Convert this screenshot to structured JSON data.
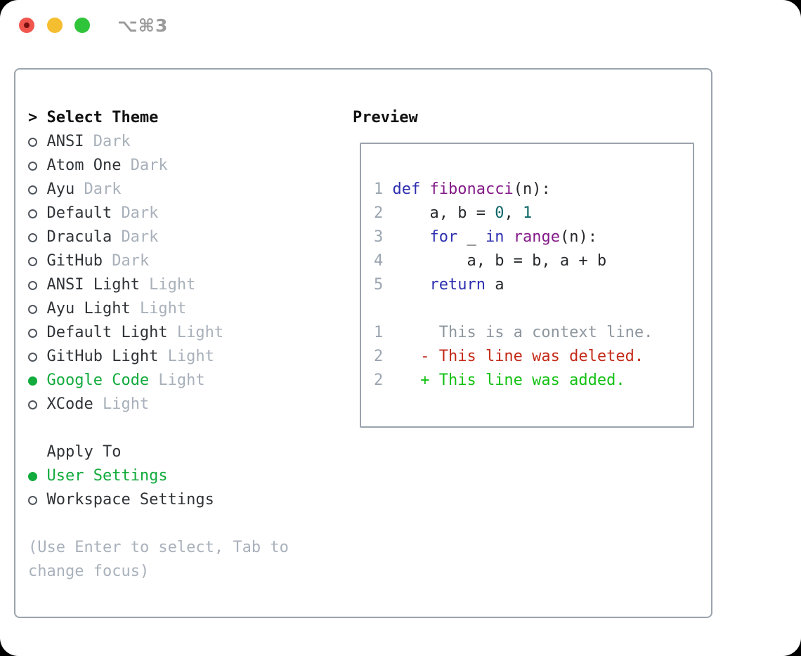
{
  "window": {
    "title": "⌥⌘3",
    "traffic_lights": [
      "close",
      "minimize",
      "zoom"
    ]
  },
  "colors": {
    "accent_green": "#12ab3d",
    "traffic_red": "#f1564e",
    "traffic_red_dot": "#7b1010",
    "traffic_yellow": "#f5bd30",
    "traffic_green": "#30c43a",
    "panel_border": "#9ba3ac",
    "muted_gray": "#a8b0ba",
    "text_dark": "#2f3337",
    "code_keyword": "#2e2fb0",
    "code_function": "#831a88",
    "code_literal": "#0b6568",
    "code_plain": "#26282b",
    "code_linenum": "#9aa5b1",
    "diff_context": "#8d969e",
    "diff_deleted": "#c42a18",
    "diff_added": "#13c113"
  },
  "theme_panel": {
    "header_prefix": ">",
    "header_label": "Select Theme",
    "themes": [
      {
        "name": "ANSI",
        "variant": "Dark",
        "selected": false
      },
      {
        "name": "Atom One",
        "variant": "Dark",
        "selected": false
      },
      {
        "name": "Ayu",
        "variant": "Dark",
        "selected": false
      },
      {
        "name": "Default",
        "variant": "Dark",
        "selected": false
      },
      {
        "name": "Dracula",
        "variant": "Dark",
        "selected": false
      },
      {
        "name": "GitHub",
        "variant": "Dark",
        "selected": false
      },
      {
        "name": "ANSI Light",
        "variant": "Light",
        "selected": false
      },
      {
        "name": "Ayu Light",
        "variant": "Light",
        "selected": false
      },
      {
        "name": "Default Light",
        "variant": "Light",
        "selected": false
      },
      {
        "name": "GitHub Light",
        "variant": "Light",
        "selected": false
      },
      {
        "name": "Google Code",
        "variant": "Light",
        "selected": true
      },
      {
        "name": "XCode",
        "variant": "Light",
        "selected": false
      }
    ],
    "apply_to_label": "Apply To",
    "apply_options": [
      {
        "name": "User Settings",
        "selected": true
      },
      {
        "name": "Workspace Settings",
        "selected": false
      }
    ],
    "hint_lines": [
      "(Use Enter to select, Tab to",
      "change focus)"
    ]
  },
  "preview": {
    "label": "Preview",
    "code_lines": [
      [
        [
          "num",
          "1 "
        ],
        [
          "kw",
          "def"
        ],
        [
          "pl",
          " "
        ],
        [
          "fn",
          "fibonacci"
        ],
        [
          "pl",
          "(n):"
        ]
      ],
      [
        [
          "num",
          "2 "
        ],
        [
          "pl",
          "    a, b = "
        ],
        [
          "lit",
          "0"
        ],
        [
          "pl",
          ", "
        ],
        [
          "lit",
          "1"
        ]
      ],
      [
        [
          "num",
          "3 "
        ],
        [
          "pl",
          "    "
        ],
        [
          "kw",
          "for"
        ],
        [
          "pl",
          " _ "
        ],
        [
          "kw",
          "in"
        ],
        [
          "pl",
          " "
        ],
        [
          "fn",
          "range"
        ],
        [
          "pl",
          "(n):"
        ]
      ],
      [
        [
          "num",
          "4 "
        ],
        [
          "pl",
          "        a, b = b, a + b"
        ]
      ],
      [
        [
          "num",
          "5 "
        ],
        [
          "pl",
          "    "
        ],
        [
          "kw",
          "return"
        ],
        [
          "pl",
          " a"
        ]
      ],
      [],
      [
        [
          "num",
          "1"
        ],
        [
          "ctx",
          "      This is a context line."
        ]
      ],
      [
        [
          "num",
          "2"
        ],
        [
          "del",
          "    - This line was deleted."
        ]
      ],
      [
        [
          "num",
          "2"
        ],
        [
          "add",
          "    + This line was added."
        ]
      ]
    ]
  }
}
